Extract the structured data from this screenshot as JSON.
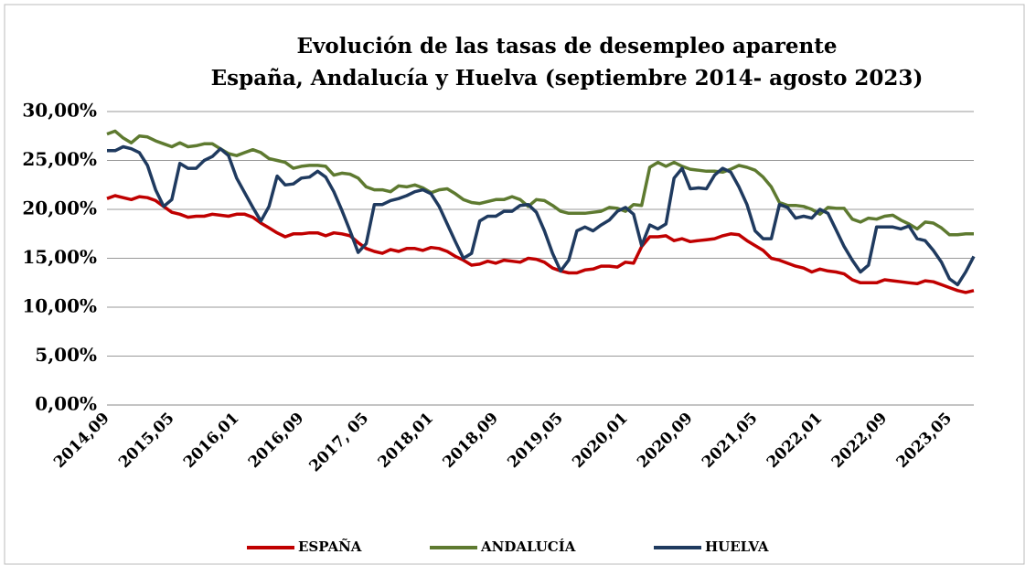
{
  "chart_data": {
    "type": "line",
    "title": "Evolución de las tasas de desempleo aparente",
    "subtitle": "España, Andalucía y Huelva (septiembre 2014- agosto 2023)",
    "categories": [
      "2014,09",
      null,
      null,
      null,
      null,
      null,
      null,
      null,
      "2015,05",
      null,
      null,
      null,
      null,
      null,
      null,
      null,
      "2016,01",
      null,
      null,
      null,
      null,
      null,
      null,
      null,
      "2016,09",
      null,
      null,
      null,
      null,
      null,
      null,
      null,
      "2017, 05",
      null,
      null,
      null,
      null,
      null,
      null,
      null,
      "2018,01",
      null,
      null,
      null,
      null,
      null,
      null,
      null,
      "2018,09",
      null,
      null,
      null,
      null,
      null,
      null,
      null,
      "2019,05",
      null,
      null,
      null,
      null,
      null,
      null,
      null,
      "2020,01",
      null,
      null,
      null,
      null,
      null,
      null,
      null,
      "2020,09",
      null,
      null,
      null,
      null,
      null,
      null,
      null,
      "2021,05",
      null,
      null,
      null,
      null,
      null,
      null,
      null,
      "2022,01",
      null,
      null,
      null,
      null,
      null,
      null,
      null,
      "2022,09",
      null,
      null,
      null,
      null,
      null,
      null,
      null,
      "2023,05",
      null,
      null,
      null
    ],
    "series": [
      {
        "name": "ESPAÑA",
        "color": "#c00000",
        "values": [
          21.1,
          21.4,
          21.2,
          21.0,
          21.3,
          21.2,
          20.9,
          20.3,
          19.7,
          19.5,
          19.2,
          19.3,
          19.3,
          19.5,
          19.4,
          19.3,
          19.5,
          19.5,
          19.2,
          18.6,
          18.1,
          17.6,
          17.2,
          17.5,
          17.5,
          17.6,
          17.6,
          17.3,
          17.6,
          17.5,
          17.3,
          16.6,
          16.0,
          15.7,
          15.5,
          15.9,
          15.7,
          16.0,
          16.0,
          15.8,
          16.1,
          16.0,
          15.7,
          15.2,
          14.8,
          14.3,
          14.4,
          14.7,
          14.5,
          14.8,
          14.7,
          14.6,
          15.0,
          14.9,
          14.6,
          14.0,
          13.7,
          13.5,
          13.5,
          13.8,
          13.9,
          14.2,
          14.2,
          14.1,
          14.6,
          14.5,
          16.2,
          17.2,
          17.2,
          17.3,
          16.8,
          17.0,
          16.7,
          16.8,
          16.9,
          17.0,
          17.3,
          17.5,
          17.4,
          16.8,
          16.3,
          15.8,
          15.0,
          14.8,
          14.5,
          14.2,
          14.0,
          13.6,
          13.9,
          13.7,
          13.6,
          13.4,
          12.8,
          12.5,
          12.5,
          12.5,
          12.8,
          12.7,
          12.6,
          12.5,
          12.4,
          12.7,
          12.6,
          12.3,
          12.0,
          11.7,
          11.5,
          11.7
        ]
      },
      {
        "name": "ANDALUCÍA",
        "color": "#5e7a30",
        "values": [
          27.7,
          28.0,
          27.3,
          26.8,
          27.5,
          27.4,
          27.0,
          26.7,
          26.4,
          26.8,
          26.4,
          26.5,
          26.7,
          26.7,
          26.2,
          25.7,
          25.5,
          25.8,
          26.1,
          25.8,
          25.2,
          25.0,
          24.8,
          24.2,
          24.4,
          24.5,
          24.5,
          24.4,
          23.5,
          23.7,
          23.6,
          23.2,
          22.3,
          22.0,
          22.0,
          21.8,
          22.4,
          22.3,
          22.5,
          22.2,
          21.7,
          22.0,
          22.1,
          21.6,
          21.0,
          20.7,
          20.6,
          20.8,
          21.0,
          21.0,
          21.3,
          21.0,
          20.3,
          21.0,
          20.9,
          20.4,
          19.8,
          19.6,
          19.6,
          19.6,
          19.7,
          19.8,
          20.2,
          20.1,
          19.8,
          20.5,
          20.4,
          24.3,
          24.8,
          24.4,
          24.8,
          24.4,
          24.1,
          24.0,
          23.9,
          23.9,
          23.8,
          24.1,
          24.5,
          24.3,
          24.0,
          23.3,
          22.3,
          20.7,
          20.4,
          20.4,
          20.3,
          20.0,
          19.5,
          20.2,
          20.1,
          20.1,
          19.0,
          18.7,
          19.1,
          19.0,
          19.3,
          19.4,
          18.9,
          18.5,
          18.0,
          18.7,
          18.6,
          18.1,
          17.4,
          17.4,
          17.5,
          17.5
        ]
      },
      {
        "name": "HUELVA",
        "color": "#1f3a5f",
        "values": [
          26.0,
          26.0,
          26.4,
          26.2,
          25.8,
          24.5,
          22.0,
          20.3,
          21.0,
          24.7,
          24.2,
          24.2,
          25.0,
          25.4,
          26.2,
          25.5,
          23.2,
          21.7,
          20.2,
          18.8,
          20.3,
          23.4,
          22.5,
          22.6,
          23.2,
          23.3,
          23.9,
          23.3,
          21.8,
          19.9,
          17.8,
          15.6,
          16.5,
          20.5,
          20.5,
          20.9,
          21.1,
          21.4,
          21.8,
          22.0,
          21.6,
          20.3,
          18.5,
          16.7,
          15.0,
          15.5,
          18.8,
          19.3,
          19.3,
          19.8,
          19.8,
          20.4,
          20.5,
          19.7,
          17.8,
          15.5,
          13.7,
          14.8,
          17.8,
          18.2,
          17.8,
          18.4,
          18.9,
          19.8,
          20.2,
          19.5,
          16.3,
          18.4,
          18.0,
          18.5,
          23.2,
          24.2,
          22.1,
          22.2,
          22.1,
          23.5,
          24.2,
          23.8,
          22.3,
          20.5,
          17.8,
          17.0,
          17.0,
          20.5,
          20.2,
          19.1,
          19.3,
          19.1,
          20.0,
          19.6,
          17.9,
          16.2,
          14.8,
          13.6,
          14.3,
          18.2,
          18.2,
          18.2,
          18.0,
          18.3,
          17.0,
          16.8,
          15.8,
          14.6,
          12.9,
          12.3,
          13.6,
          15.2
        ]
      }
    ],
    "ylim": [
      0,
      30
    ],
    "yticks": [
      {
        "value": 0,
        "label": "0,00%"
      },
      {
        "value": 5,
        "label": "5,00%"
      },
      {
        "value": 10,
        "label": "10,00%"
      },
      {
        "value": 15,
        "label": "15,00%"
      },
      {
        "value": 20,
        "label": "20,00%"
      },
      {
        "value": 25,
        "label": "25,00%"
      },
      {
        "value": 30,
        "label": "30,00%"
      }
    ],
    "grid": true,
    "legend": "bottom"
  }
}
